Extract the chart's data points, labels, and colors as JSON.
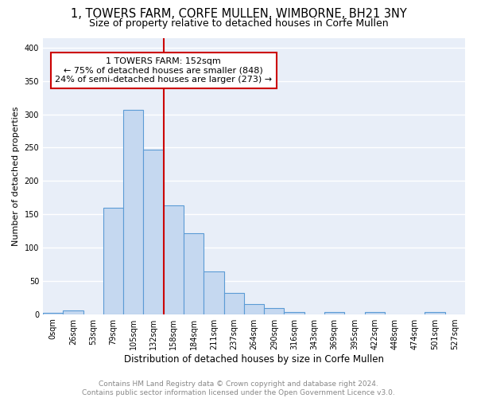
{
  "title1": "1, TOWERS FARM, CORFE MULLEN, WIMBORNE, BH21 3NY",
  "title2": "Size of property relative to detached houses in Corfe Mullen",
  "xlabel": "Distribution of detached houses by size in Corfe Mullen",
  "ylabel": "Number of detached properties",
  "footer1": "Contains HM Land Registry data © Crown copyright and database right 2024.",
  "footer2": "Contains public sector information licensed under the Open Government Licence v3.0.",
  "bar_labels": [
    "0sqm",
    "26sqm",
    "53sqm",
    "79sqm",
    "105sqm",
    "132sqm",
    "158sqm",
    "184sqm",
    "211sqm",
    "237sqm",
    "264sqm",
    "290sqm",
    "316sqm",
    "343sqm",
    "369sqm",
    "395sqm",
    "422sqm",
    "448sqm",
    "474sqm",
    "501sqm",
    "527sqm"
  ],
  "bar_heights": [
    2,
    5,
    0,
    160,
    307,
    247,
    163,
    121,
    64,
    32,
    15,
    9,
    3,
    0,
    3,
    0,
    3,
    0,
    0,
    3,
    0
  ],
  "bar_color": "#C5D8F0",
  "bar_edge_color": "#5B9BD5",
  "vline_index": 6,
  "vline_color": "#CC0000",
  "annotation_line1": "1 TOWERS FARM: 152sqm",
  "annotation_line2": "← 75% of detached houses are smaller (848)",
  "annotation_line3": "24% of semi-detached houses are larger (273) →",
  "annotation_box_facecolor": "#FFFFFF",
  "annotation_box_edgecolor": "#CC0000",
  "ylim": [
    0,
    415
  ],
  "yticks": [
    0,
    50,
    100,
    150,
    200,
    250,
    300,
    350,
    400
  ],
  "plot_bg_color": "#E8EEF8",
  "grid_color": "#FFFFFF",
  "title_fontsize": 10.5,
  "subtitle_fontsize": 9,
  "ylabel_fontsize": 8,
  "xlabel_fontsize": 8.5,
  "tick_fontsize": 7,
  "footer_fontsize": 6.5,
  "annot_fontsize": 8
}
